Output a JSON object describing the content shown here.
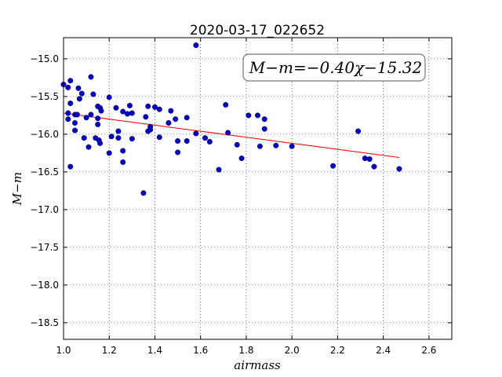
{
  "chart_data": {
    "type": "scatter",
    "title": "2020-03-17_022652",
    "xlabel": "airmass",
    "ylabel": "M−m",
    "xlim": [
      1.0,
      2.7
    ],
    "ylim": [
      -18.72,
      -14.72
    ],
    "xticks": [
      "1.0",
      "1.2",
      "1.4",
      "1.6",
      "1.8",
      "2.0",
      "2.2",
      "2.4",
      "2.6"
    ],
    "yticks": [
      "−15.0",
      "−15.5",
      "−16.0",
      "−16.5",
      "−17.0",
      "−17.5",
      "−18.0",
      "−18.5"
    ],
    "grid": true,
    "annotation": "M−m=−0.40χ−15.32",
    "annotation_placement": "top-right",
    "fit": {
      "slope": -0.4,
      "intercept": -15.32,
      "x_range": [
        1.0,
        2.47
      ],
      "color": "#ff0000"
    },
    "point_color": "#0000cc",
    "points": [
      [
        1.0,
        -15.34
      ],
      [
        1.02,
        -15.38
      ],
      [
        1.02,
        -15.8
      ],
      [
        1.02,
        -15.72
      ],
      [
        1.03,
        -15.29
      ],
      [
        1.03,
        -15.59
      ],
      [
        1.03,
        -16.43
      ],
      [
        1.05,
        -15.74
      ],
      [
        1.05,
        -15.85
      ],
      [
        1.05,
        -15.95
      ],
      [
        1.06,
        -15.74
      ],
      [
        1.065,
        -15.39
      ],
      [
        1.07,
        -15.53
      ],
      [
        1.08,
        -15.46
      ],
      [
        1.09,
        -16.05
      ],
      [
        1.1,
        -15.78
      ],
      [
        1.11,
        -16.17
      ],
      [
        1.12,
        -15.24
      ],
      [
        1.12,
        -15.74
      ],
      [
        1.13,
        -15.47
      ],
      [
        1.14,
        -16.05
      ],
      [
        1.15,
        -15.63
      ],
      [
        1.15,
        -15.79
      ],
      [
        1.15,
        -15.87
      ],
      [
        1.155,
        -16.08
      ],
      [
        1.16,
        -15.65
      ],
      [
        1.16,
        -16.12
      ],
      [
        1.165,
        -15.69
      ],
      [
        1.2,
        -15.51
      ],
      [
        1.2,
        -16.25
      ],
      [
        1.21,
        -16.03
      ],
      [
        1.23,
        -15.65
      ],
      [
        1.24,
        -15.96
      ],
      [
        1.24,
        -16.05
      ],
      [
        1.26,
        -15.7
      ],
      [
        1.26,
        -16.22
      ],
      [
        1.26,
        -16.37
      ],
      [
        1.28,
        -15.73
      ],
      [
        1.29,
        -15.62
      ],
      [
        1.3,
        -15.72
      ],
      [
        1.3,
        -16.06
      ],
      [
        1.35,
        -16.78
      ],
      [
        1.36,
        -15.77
      ],
      [
        1.37,
        -15.63
      ],
      [
        1.37,
        -15.96
      ],
      [
        1.38,
        -15.9
      ],
      [
        1.38,
        -15.94
      ],
      [
        1.4,
        -15.64
      ],
      [
        1.42,
        -15.67
      ],
      [
        1.42,
        -16.04
      ],
      [
        1.46,
        -15.85
      ],
      [
        1.47,
        -15.69
      ],
      [
        1.49,
        -15.8
      ],
      [
        1.5,
        -16.09
      ],
      [
        1.5,
        -16.24
      ],
      [
        1.54,
        -15.78
      ],
      [
        1.54,
        -16.09
      ],
      [
        1.58,
        -14.82
      ],
      [
        1.58,
        -15.99
      ],
      [
        1.62,
        -16.05
      ],
      [
        1.64,
        -16.1
      ],
      [
        1.68,
        -16.47
      ],
      [
        1.71,
        -15.61
      ],
      [
        1.72,
        -15.98
      ],
      [
        1.76,
        -16.14
      ],
      [
        1.78,
        -16.32
      ],
      [
        1.81,
        -15.75
      ],
      [
        1.85,
        -15.75
      ],
      [
        1.86,
        -16.16
      ],
      [
        1.88,
        -15.93
      ],
      [
        1.88,
        -15.8
      ],
      [
        1.93,
        -16.15
      ],
      [
        2.0,
        -16.16
      ],
      [
        2.18,
        -16.42
      ],
      [
        2.29,
        -15.96
      ],
      [
        2.32,
        -16.32
      ],
      [
        2.34,
        -16.33
      ],
      [
        2.36,
        -16.43
      ],
      [
        2.47,
        -16.46
      ]
    ]
  }
}
